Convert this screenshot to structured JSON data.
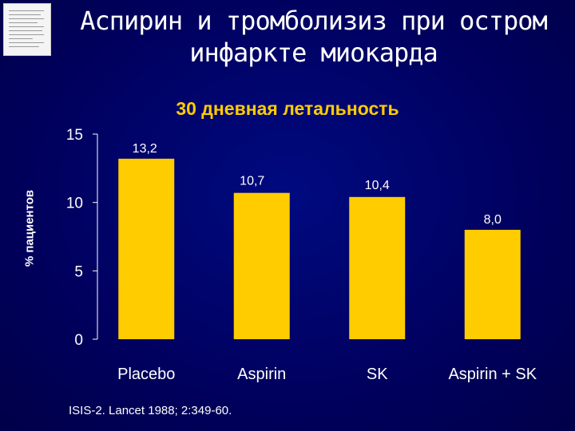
{
  "slide": {
    "title": "Аспирин и тромболизиз при остром инфаркте миокарда",
    "footnote": "ISIS-2. Lancet 1988; 2:349-60."
  },
  "colors": {
    "background": "#000066",
    "bar": "#ffcc00",
    "subtitle": "#ffcc00",
    "text": "#ffffff"
  },
  "chart_data": {
    "type": "bar",
    "title": "30 дневная летальность",
    "xlabel": "",
    "ylabel": "% пациентов",
    "categories": [
      "Placebo",
      "Aspirin",
      "SK",
      "Aspirin + SK"
    ],
    "values": [
      13.2,
      10.7,
      10.4,
      8.0
    ],
    "value_labels": [
      "13,2",
      "10,7",
      "10,4",
      "8,0"
    ],
    "yticks": [
      "0",
      "5",
      "10",
      "15"
    ],
    "ylim": [
      0,
      15
    ],
    "grid": false,
    "legend": "none"
  }
}
